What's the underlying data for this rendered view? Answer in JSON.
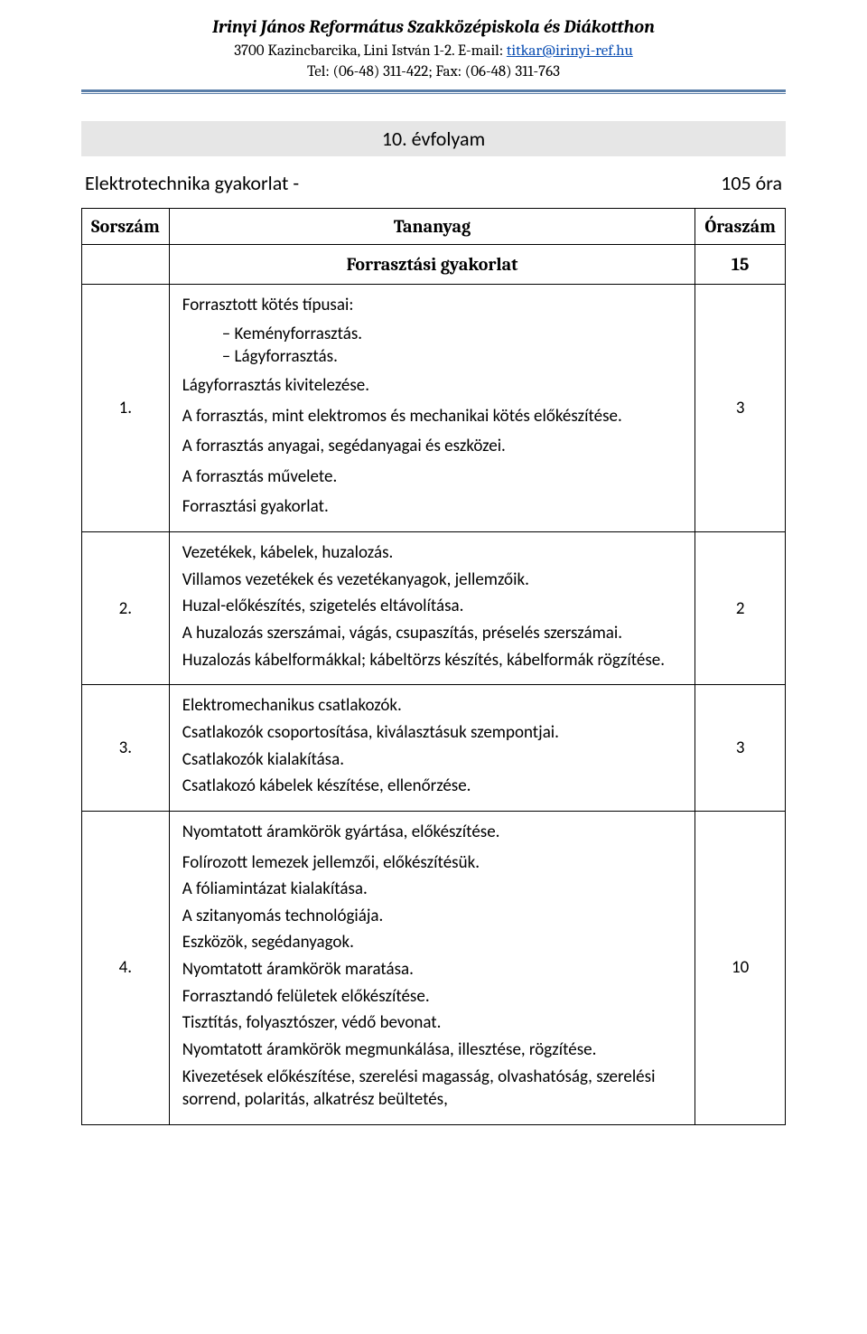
{
  "header": {
    "school_name": "Irinyi János Református Szakközépiskola és Diákotthon",
    "address_prefix": "3700 Kazincbarcika, Lini István 1-2. E-mail: ",
    "email": "titkar@irinyi-ref.hu",
    "tel_line": "Tel: (06-48) 311-422; Fax: (06-48) 311-763"
  },
  "grade_title": "10. évfolyam",
  "subject": {
    "name": "Elektrotechnika gyakorlat -",
    "hours": "105 óra"
  },
  "table": {
    "headers": {
      "col1": "Sorszám",
      "col2": "Tananyag",
      "col3": "Óraszám"
    },
    "section": {
      "title": "Forrasztási gyakorlat",
      "hours": "15"
    },
    "rows": [
      {
        "num": "1.",
        "hours": "3",
        "content": {
          "intro": "Forrasztott kötés típusai:",
          "bullets": [
            "Keményforrasztás.",
            "Lágyforrasztás."
          ],
          "after_bullets": "Lágyforrasztás kivitelezése.",
          "paras": [
            "A forrasztás, mint elektromos és mechanikai kötés előkészítése.",
            "A forrasztás anyagai, segédanyagai és eszközei.",
            "A forrasztás művelete.",
            "Forrasztási gyakorlat."
          ]
        }
      },
      {
        "num": "2.",
        "hours": "2",
        "content": {
          "lines": [
            "Vezetékek, kábelek, huzalozás.",
            "Villamos vezetékek és vezetékanyagok, jellemzőik.",
            "Huzal-előkészítés, szigetelés eltávolítása.",
            "A huzalozás szerszámai, vágás, csupaszítás, préselés szerszámai.",
            "Huzalozás kábelformákkal; kábeltörzs készítés, kábelformák rögzítése."
          ]
        }
      },
      {
        "num": "3.",
        "hours": "3",
        "content": {
          "lines": [
            "Elektromechanikus csatlakozók.",
            "Csatlakozók csoportosítása, kiválasztásuk szempontjai.",
            "Csatlakozók kialakítása.",
            "Csatlakozó kábelek készítése, ellenőrzése."
          ]
        }
      },
      {
        "num": "4.",
        "hours": "10",
        "content": {
          "intro_para": "Nyomtatott áramkörök gyártása, előkészítése.",
          "lines": [
            "Folírozott lemezek jellemzői, előkészítésük.",
            "A fóliamintázat kialakítása.",
            "A szitanyomás technológiája.",
            "Eszközök, segédanyagok.",
            "Nyomtatott áramkörök maratása.",
            "Forrasztandó felületek előkészítése.",
            "Tisztítás, folyasztószer, védő bevonat.",
            "Nyomtatott áramkörök megmunkálása, illesztése, rögzítése.",
            "Kivezetések előkészítése, szerelési magasság, olvashatóság, szerelési sorrend, polaritás, alkatrész beültetés,"
          ]
        }
      }
    ]
  }
}
